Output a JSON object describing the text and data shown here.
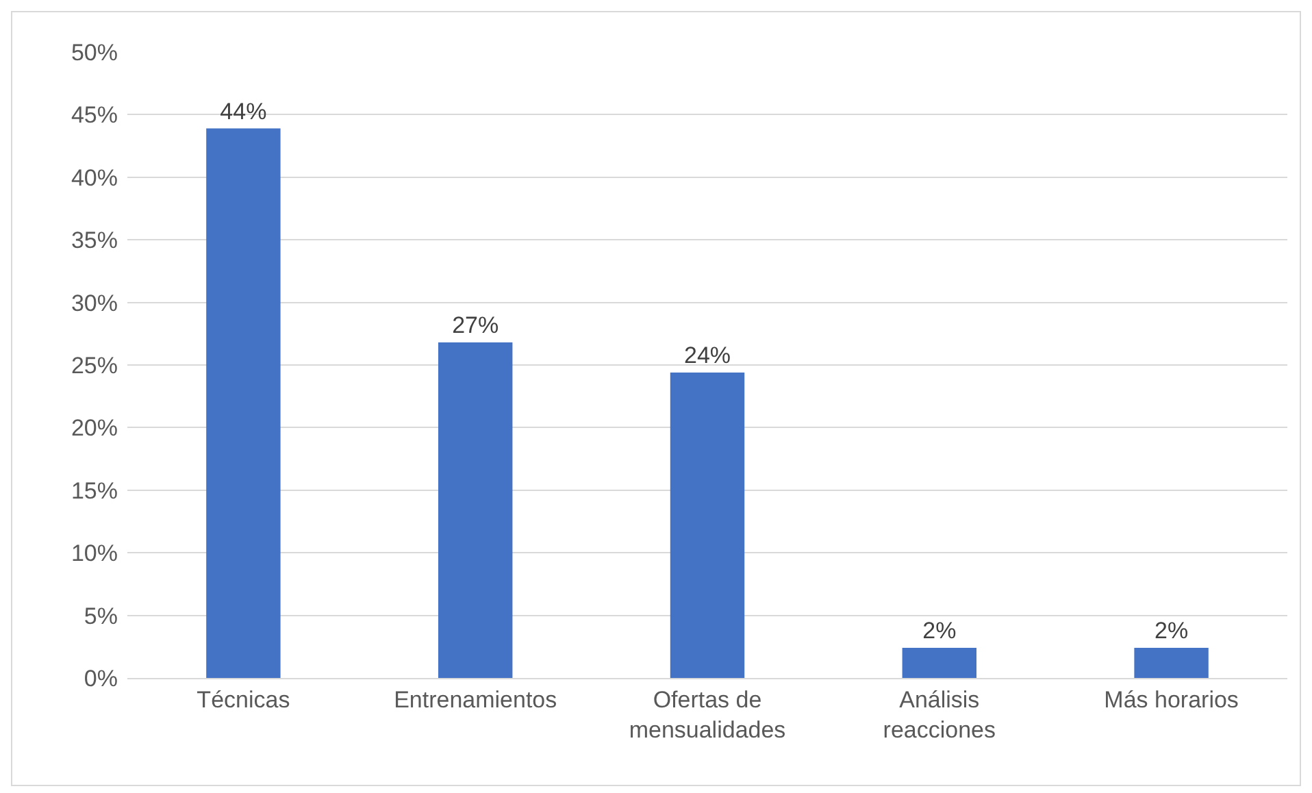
{
  "chart_data": {
    "type": "bar",
    "categories": [
      "Técnicas",
      "Entrenamientos",
      "Ofertas de mensualidades",
      "Análisis reacciones",
      "Más horarios"
    ],
    "values": [
      43.9,
      26.8,
      24.4,
      2.4,
      2.4
    ],
    "value_labels": [
      "44%",
      "27%",
      "24%",
      "2%",
      "2%"
    ],
    "color": "#4472c4",
    "ylim": [
      0,
      50
    ],
    "yticks": [
      {
        "value": 0,
        "label": "0%"
      },
      {
        "value": 5,
        "label": "5%"
      },
      {
        "value": 10,
        "label": "10%"
      },
      {
        "value": 15,
        "label": "15%"
      },
      {
        "value": 20,
        "label": "20%"
      },
      {
        "value": 25,
        "label": "25%"
      },
      {
        "value": 30,
        "label": "30%"
      },
      {
        "value": 35,
        "label": "35%"
      },
      {
        "value": 40,
        "label": "40%"
      },
      {
        "value": 45,
        "label": "45%"
      },
      {
        "value": 50,
        "label": "50%"
      }
    ],
    "grid": "y",
    "legend": false
  }
}
